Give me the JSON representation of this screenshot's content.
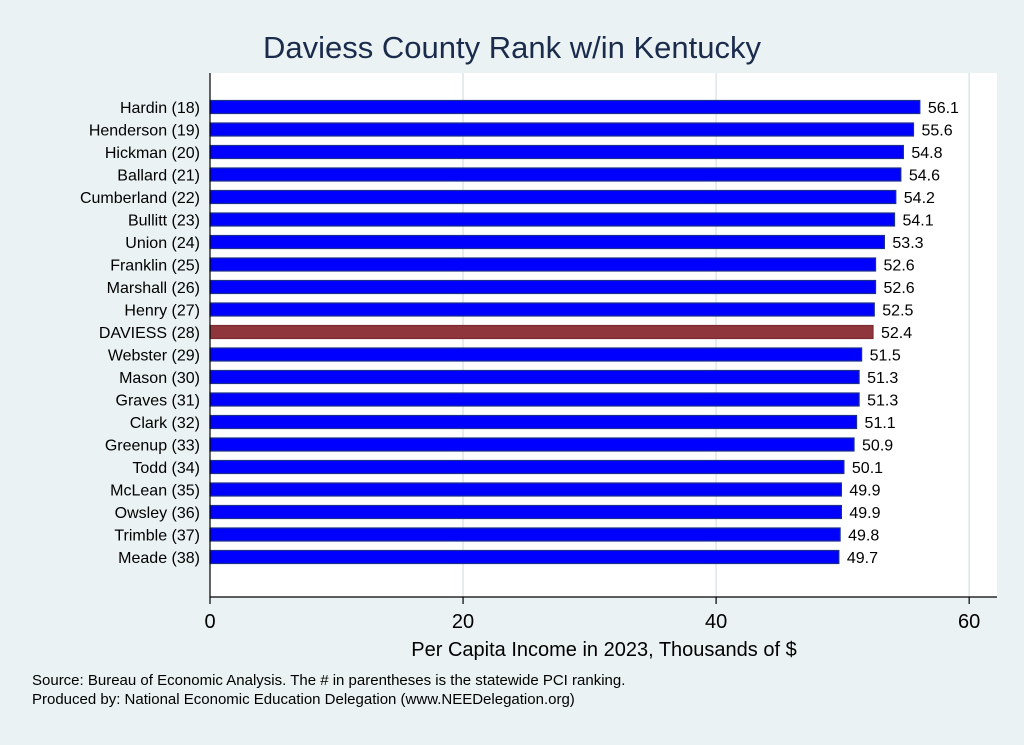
{
  "chart_data": {
    "type": "bar",
    "orientation": "horizontal",
    "title": "Daviess County Rank w/in Kentucky",
    "xlabel": "Per Capita Income in 2023, Thousands of $",
    "ylabel": "",
    "xlim": [
      0,
      62.2
    ],
    "xticks": [
      0,
      20,
      40,
      60
    ],
    "grid": true,
    "categories": [
      "Hardin (18)",
      "Henderson (19)",
      "Hickman (20)",
      "Ballard (21)",
      "Cumberland (22)",
      "Bullitt (23)",
      "Union (24)",
      "Franklin (25)",
      "Marshall (26)",
      "Henry (27)",
      "DAVIESS (28)",
      "Webster (29)",
      "Mason (30)",
      "Graves (31)",
      "Clark (32)",
      "Greenup (33)",
      "Todd (34)",
      "McLean (35)",
      "Owsley (36)",
      "Trimble (37)",
      "Meade (38)"
    ],
    "values": [
      56.1,
      55.6,
      54.8,
      54.6,
      54.2,
      54.1,
      53.3,
      52.6,
      52.6,
      52.5,
      52.4,
      51.5,
      51.3,
      51.3,
      51.1,
      50.9,
      50.1,
      49.9,
      49.9,
      49.8,
      49.7
    ],
    "highlight_index": 10,
    "colors": {
      "bar": "#0000ff",
      "bar_edge": "#1a2f8a",
      "highlight": "#8f353c",
      "highlight_edge": "#7a2a30",
      "title": "#1a2b4c",
      "grid": "#dde6ea",
      "background": "#eaf2f3",
      "plot": "#ffffff"
    }
  },
  "notes": {
    "source": "Source: Bureau of Economic Analysis. The # in parentheses is the statewide PCI ranking.",
    "produced": "Produced by: National Economic Education Delegation (www.NEEDelegation.org)"
  }
}
